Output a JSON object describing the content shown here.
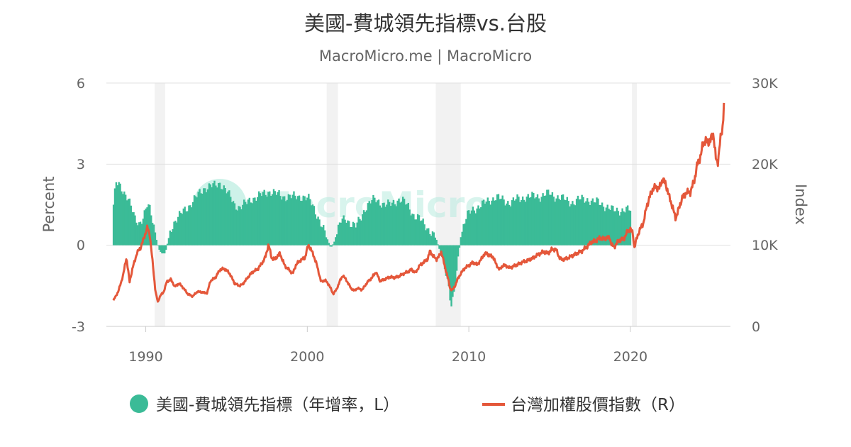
{
  "chart_data": {
    "type": "bar+line",
    "title": "美國-費城領先指標vs.台股",
    "subtitle": "MacroMicro.me | MacroMicro",
    "watermark": "MacroMicro",
    "left_axis": {
      "label": "Percent",
      "ticks": [
        "6",
        "3",
        "0",
        "-3"
      ],
      "range": [
        -3,
        6
      ]
    },
    "right_axis": {
      "label": "Index",
      "ticks": [
        "30K",
        "20K",
        "10K",
        "0"
      ],
      "range": [
        0,
        30000
      ]
    },
    "x_axis": {
      "ticks": [
        "1990",
        "2000",
        "2010",
        "2020"
      ],
      "range": [
        1988.0,
        2025.8
      ]
    },
    "grid": true,
    "legend_position": "bottom",
    "recession_shading": [
      [
        1990.55,
        1991.2
      ],
      [
        2001.2,
        2001.9
      ],
      [
        2007.95,
        2009.5
      ],
      [
        2020.1,
        2020.4
      ]
    ],
    "series": [
      {
        "name": "美國-費城領先指標（年增率，L）",
        "type": "bar",
        "axis": "left",
        "color": "#3bbb97",
        "points": [
          [
            1988.0,
            1.5
          ],
          [
            1988.15,
            2.3
          ],
          [
            1988.35,
            2.2
          ],
          [
            1988.6,
            2.0
          ],
          [
            1988.9,
            1.8
          ],
          [
            1989.15,
            1.3
          ],
          [
            1989.35,
            0.9
          ],
          [
            1989.6,
            0.8
          ],
          [
            1989.85,
            1.1
          ],
          [
            1990.1,
            1.5
          ],
          [
            1990.25,
            1.3
          ],
          [
            1990.5,
            0.7
          ],
          [
            1990.7,
            0.1
          ],
          [
            1990.85,
            -0.2
          ],
          [
            1991.0,
            -0.3
          ],
          [
            1991.2,
            -0.3
          ],
          [
            1991.35,
            0.1
          ],
          [
            1991.55,
            0.6
          ],
          [
            1991.8,
            0.9
          ],
          [
            1992.1,
            1.1
          ],
          [
            1992.4,
            1.3
          ],
          [
            1992.75,
            1.5
          ],
          [
            1993.0,
            1.7
          ],
          [
            1993.3,
            1.9
          ],
          [
            1993.6,
            2.1
          ],
          [
            1994.0,
            2.2
          ],
          [
            1994.3,
            2.2
          ],
          [
            1994.6,
            2.3
          ],
          [
            1994.9,
            2.1
          ],
          [
            1995.2,
            1.8
          ],
          [
            1995.5,
            1.5
          ],
          [
            1995.8,
            1.4
          ],
          [
            1996.1,
            1.5
          ],
          [
            1996.5,
            1.7
          ],
          [
            1996.9,
            1.8
          ],
          [
            1997.3,
            1.9
          ],
          [
            1997.7,
            2.0
          ],
          [
            1998.1,
            1.9
          ],
          [
            1998.5,
            1.8
          ],
          [
            1998.9,
            1.8
          ],
          [
            1999.3,
            1.8
          ],
          [
            1999.7,
            1.8
          ],
          [
            2000.1,
            1.7
          ],
          [
            2000.4,
            1.4
          ],
          [
            2000.7,
            1.0
          ],
          [
            2000.9,
            0.7
          ],
          [
            2001.2,
            0.3
          ],
          [
            2001.45,
            -0.1
          ],
          [
            2001.65,
            0.1
          ],
          [
            2001.85,
            0.5
          ],
          [
            2002.1,
            0.9
          ],
          [
            2002.4,
            1.0
          ],
          [
            2002.7,
            0.8
          ],
          [
            2003.0,
            0.7
          ],
          [
            2003.3,
            1.0
          ],
          [
            2003.6,
            1.4
          ],
          [
            2003.9,
            1.6
          ],
          [
            2004.2,
            1.7
          ],
          [
            2004.5,
            1.6
          ],
          [
            2004.8,
            1.5
          ],
          [
            2005.1,
            1.5
          ],
          [
            2005.4,
            1.6
          ],
          [
            2005.7,
            1.7
          ],
          [
            2006.0,
            1.6
          ],
          [
            2006.3,
            1.4
          ],
          [
            2006.6,
            1.1
          ],
          [
            2006.9,
            1.0
          ],
          [
            2007.2,
            0.8
          ],
          [
            2007.5,
            0.6
          ],
          [
            2007.8,
            0.4
          ],
          [
            2008.0,
            0.2
          ],
          [
            2008.2,
            -0.2
          ],
          [
            2008.4,
            -0.5
          ],
          [
            2008.6,
            -1.0
          ],
          [
            2008.75,
            -1.6
          ],
          [
            2008.9,
            -2.3
          ],
          [
            2009.05,
            -2.0
          ],
          [
            2009.2,
            -1.2
          ],
          [
            2009.35,
            -0.4
          ],
          [
            2009.5,
            0.3
          ],
          [
            2009.7,
            0.8
          ],
          [
            2009.9,
            1.1
          ],
          [
            2010.2,
            1.3
          ],
          [
            2010.5,
            1.4
          ],
          [
            2010.8,
            1.5
          ],
          [
            2011.1,
            1.6
          ],
          [
            2011.4,
            1.7
          ],
          [
            2011.7,
            1.8
          ],
          [
            2012.0,
            1.7
          ],
          [
            2012.3,
            1.6
          ],
          [
            2012.6,
            1.6
          ],
          [
            2012.9,
            1.7
          ],
          [
            2013.2,
            1.7
          ],
          [
            2013.5,
            1.8
          ],
          [
            2013.8,
            1.8
          ],
          [
            2014.1,
            1.8
          ],
          [
            2014.4,
            1.8
          ],
          [
            2014.7,
            1.9
          ],
          [
            2015.0,
            1.9
          ],
          [
            2015.3,
            1.8
          ],
          [
            2015.6,
            1.8
          ],
          [
            2015.9,
            1.7
          ],
          [
            2016.2,
            1.6
          ],
          [
            2016.5,
            1.6
          ],
          [
            2016.8,
            1.7
          ],
          [
            2017.1,
            1.7
          ],
          [
            2017.4,
            1.7
          ],
          [
            2017.7,
            1.6
          ],
          [
            2018.0,
            1.6
          ],
          [
            2018.3,
            1.5
          ],
          [
            2018.6,
            1.4
          ],
          [
            2018.9,
            1.3
          ],
          [
            2019.2,
            1.3
          ],
          [
            2019.5,
            1.3
          ],
          [
            2019.8,
            1.3
          ],
          [
            2020.05,
            1.3
          ]
        ]
      },
      {
        "name": "台灣加權股價指數（R）",
        "type": "line",
        "axis": "right",
        "color": "#e4573a",
        "points": [
          [
            1988.0,
            3200
          ],
          [
            1988.3,
            4300
          ],
          [
            1988.6,
            6300
          ],
          [
            1988.8,
            8500
          ],
          [
            1989.0,
            5500
          ],
          [
            1989.2,
            7300
          ],
          [
            1989.45,
            9000
          ],
          [
            1989.7,
            9800
          ],
          [
            1989.9,
            11000
          ],
          [
            1990.1,
            12200
          ],
          [
            1990.25,
            11300
          ],
          [
            1990.45,
            7400
          ],
          [
            1990.6,
            4300
          ],
          [
            1990.75,
            3000
          ],
          [
            1990.9,
            3800
          ],
          [
            1991.1,
            4200
          ],
          [
            1991.3,
            5500
          ],
          [
            1991.55,
            5800
          ],
          [
            1991.8,
            4900
          ],
          [
            1992.05,
            5300
          ],
          [
            1992.3,
            4800
          ],
          [
            1992.6,
            4000
          ],
          [
            1992.9,
            3700
          ],
          [
            1993.2,
            4300
          ],
          [
            1993.5,
            4200
          ],
          [
            1993.8,
            4100
          ],
          [
            1994.0,
            5600
          ],
          [
            1994.3,
            6000
          ],
          [
            1994.6,
            7000
          ],
          [
            1994.9,
            7100
          ],
          [
            1995.2,
            6500
          ],
          [
            1995.5,
            5300
          ],
          [
            1995.8,
            5000
          ],
          [
            1996.0,
            5200
          ],
          [
            1996.3,
            6000
          ],
          [
            1996.6,
            6700
          ],
          [
            1996.9,
            7000
          ],
          [
            1997.2,
            7800
          ],
          [
            1997.4,
            8500
          ],
          [
            1997.6,
            10100
          ],
          [
            1997.8,
            8400
          ],
          [
            1998.0,
            8300
          ],
          [
            1998.3,
            9000
          ],
          [
            1998.6,
            7500
          ],
          [
            1998.85,
            7000
          ],
          [
            1999.1,
            6500
          ],
          [
            1999.3,
            7600
          ],
          [
            1999.6,
            8200
          ],
          [
            1999.85,
            8400
          ],
          [
            2000.05,
            10000
          ],
          [
            2000.2,
            9600
          ],
          [
            2000.4,
            8700
          ],
          [
            2000.6,
            7500
          ],
          [
            2000.85,
            5500
          ],
          [
            2001.1,
            5700
          ],
          [
            2001.35,
            5100
          ],
          [
            2001.6,
            4000
          ],
          [
            2001.8,
            4500
          ],
          [
            2002.0,
            5500
          ],
          [
            2002.2,
            6300
          ],
          [
            2002.45,
            5600
          ],
          [
            2002.7,
            4700
          ],
          [
            2002.9,
            4400
          ],
          [
            2003.1,
            4700
          ],
          [
            2003.4,
            4500
          ],
          [
            2003.7,
            5400
          ],
          [
            2004.0,
            6000
          ],
          [
            2004.25,
            6700
          ],
          [
            2004.5,
            5600
          ],
          [
            2004.8,
            5800
          ],
          [
            2005.1,
            6100
          ],
          [
            2005.4,
            6000
          ],
          [
            2005.7,
            6200
          ],
          [
            2005.95,
            6500
          ],
          [
            2006.2,
            6700
          ],
          [
            2006.45,
            7000
          ],
          [
            2006.7,
            6600
          ],
          [
            2006.95,
            7500
          ],
          [
            2007.2,
            7900
          ],
          [
            2007.45,
            8300
          ],
          [
            2007.6,
            9300
          ],
          [
            2007.8,
            8600
          ],
          [
            2008.0,
            8300
          ],
          [
            2008.15,
            8600
          ],
          [
            2008.3,
            9200
          ],
          [
            2008.5,
            7500
          ],
          [
            2008.7,
            6000
          ],
          [
            2008.85,
            4600
          ],
          [
            2009.0,
            4500
          ],
          [
            2009.15,
            5000
          ],
          [
            2009.3,
            5800
          ],
          [
            2009.5,
            6500
          ],
          [
            2009.75,
            7200
          ],
          [
            2010.0,
            7500
          ],
          [
            2010.25,
            7900
          ],
          [
            2010.5,
            7600
          ],
          [
            2010.75,
            8200
          ],
          [
            2010.95,
            8900
          ],
          [
            2011.1,
            9000
          ],
          [
            2011.3,
            8700
          ],
          [
            2011.5,
            8600
          ],
          [
            2011.7,
            7600
          ],
          [
            2011.9,
            7000
          ],
          [
            2012.1,
            7500
          ],
          [
            2012.3,
            7500
          ],
          [
            2012.5,
            7200
          ],
          [
            2012.75,
            7400
          ],
          [
            2013.0,
            7600
          ],
          [
            2013.3,
            7900
          ],
          [
            2013.6,
            8100
          ],
          [
            2013.85,
            8300
          ],
          [
            2014.1,
            8600
          ],
          [
            2014.4,
            9000
          ],
          [
            2014.65,
            9200
          ],
          [
            2014.9,
            9000
          ],
          [
            2015.15,
            9500
          ],
          [
            2015.4,
            9500
          ],
          [
            2015.6,
            8500
          ],
          [
            2015.8,
            8200
          ],
          [
            2015.95,
            8300
          ],
          [
            2016.2,
            8500
          ],
          [
            2016.5,
            8800
          ],
          [
            2016.8,
            9100
          ],
          [
            2017.0,
            9300
          ],
          [
            2017.3,
            9800
          ],
          [
            2017.6,
            10400
          ],
          [
            2017.9,
            10600
          ],
          [
            2018.1,
            10900
          ],
          [
            2018.4,
            10800
          ],
          [
            2018.7,
            11000
          ],
          [
            2018.85,
            10000
          ],
          [
            2019.0,
            9800
          ],
          [
            2019.3,
            10600
          ],
          [
            2019.6,
            10800
          ],
          [
            2019.85,
            11800
          ],
          [
            2020.0,
            12000
          ],
          [
            2020.15,
            11500
          ],
          [
            2020.25,
            9700
          ],
          [
            2020.4,
            10900
          ],
          [
            2020.6,
            12000
          ],
          [
            2020.8,
            12700
          ],
          [
            2021.0,
            14700
          ],
          [
            2021.2,
            16000
          ],
          [
            2021.4,
            17000
          ],
          [
            2021.6,
            17200
          ],
          [
            2021.8,
            17000
          ],
          [
            2022.0,
            18200
          ],
          [
            2022.2,
            17500
          ],
          [
            2022.4,
            16000
          ],
          [
            2022.6,
            14800
          ],
          [
            2022.8,
            13300
          ],
          [
            2022.95,
            14200
          ],
          [
            2023.2,
            15800
          ],
          [
            2023.45,
            16500
          ],
          [
            2023.7,
            16500
          ],
          [
            2023.95,
            17900
          ],
          [
            2024.15,
            20000
          ],
          [
            2024.35,
            21000
          ],
          [
            2024.5,
            22500
          ],
          [
            2024.65,
            23000
          ],
          [
            2024.8,
            22600
          ],
          [
            2024.95,
            23000
          ],
          [
            2025.15,
            23700
          ],
          [
            2025.3,
            20500
          ],
          [
            2025.4,
            20000
          ],
          [
            2025.55,
            22800
          ],
          [
            2025.7,
            24200
          ],
          [
            2025.8,
            28000
          ]
        ]
      }
    ]
  }
}
